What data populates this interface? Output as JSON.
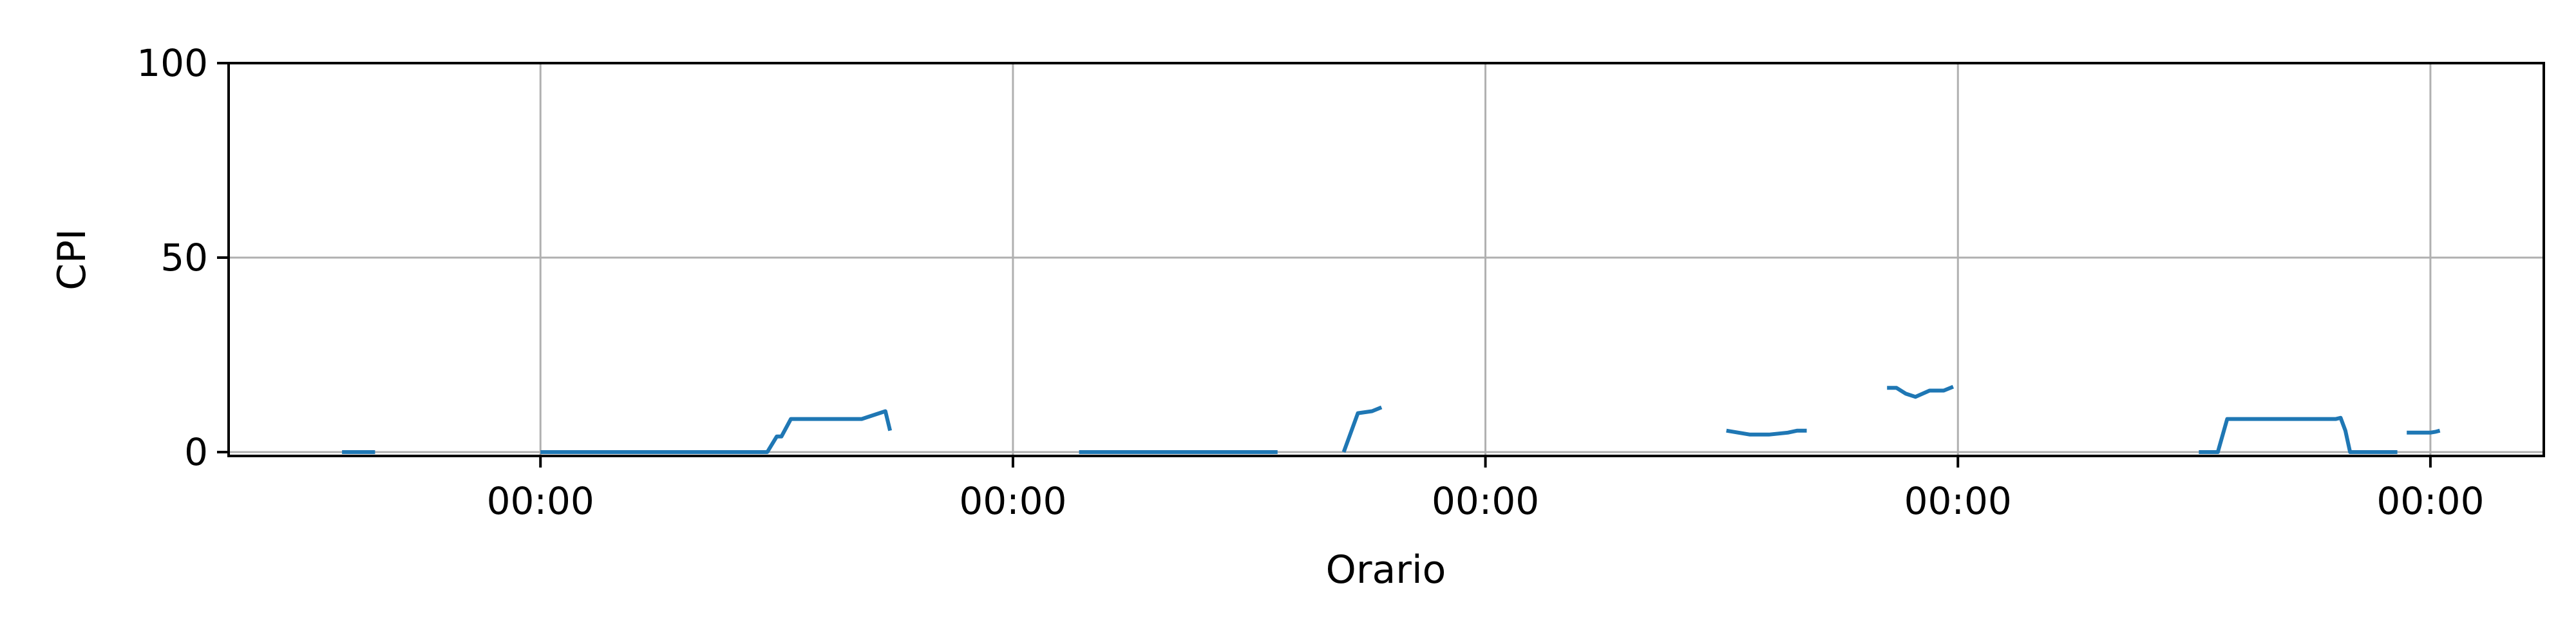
{
  "chart_data": {
    "type": "line",
    "title": "",
    "xlabel": "Orario",
    "ylabel": "CPI",
    "xlim": [
      -0.66,
      4.24
    ],
    "ylim": [
      -1,
      100
    ],
    "x_ticks": [
      {
        "value": 0,
        "label": "00:00"
      },
      {
        "value": 1,
        "label": "00:00"
      },
      {
        "value": 2,
        "label": "00:00"
      },
      {
        "value": 3,
        "label": "00:00"
      },
      {
        "value": 4,
        "label": "00:00"
      }
    ],
    "y_ticks": [
      {
        "value": 0,
        "label": "0"
      },
      {
        "value": 50,
        "label": "50"
      },
      {
        "value": 100,
        "label": "100"
      }
    ],
    "grid": true,
    "legend": "none",
    "line_color": "#1f77b4",
    "series": [
      {
        "segments": [
          [
            [
              -0.42,
              0
            ],
            [
              -0.35,
              0
            ]
          ],
          [
            [
              0.0,
              0
            ],
            [
              0.48,
              0
            ],
            [
              0.5,
              4
            ],
            [
              0.51,
              4
            ],
            [
              0.53,
              8.5
            ],
            [
              0.68,
              8.5
            ],
            [
              0.73,
              10.5
            ],
            [
              0.74,
              5.5
            ]
          ],
          [
            [
              1.14,
              0
            ],
            [
              1.56,
              0
            ]
          ],
          [
            [
              1.7,
              0
            ],
            [
              1.73,
              10
            ],
            [
              1.76,
              10.5
            ],
            [
              1.78,
              11.5
            ]
          ],
          [
            [
              2.51,
              5.5
            ],
            [
              2.56,
              4.5
            ],
            [
              2.6,
              4.5
            ],
            [
              2.64,
              5
            ],
            [
              2.66,
              5.5
            ],
            [
              2.68,
              5.5
            ]
          ],
          [
            [
              2.85,
              16.5
            ],
            [
              2.87,
              16.5
            ],
            [
              2.89,
              15
            ],
            [
              2.91,
              14.2
            ],
            [
              2.94,
              15.8
            ],
            [
              2.97,
              15.8
            ],
            [
              2.99,
              16.8
            ]
          ],
          [
            [
              3.51,
              0
            ],
            [
              3.55,
              0
            ],
            [
              3.57,
              8.5
            ],
            [
              3.8,
              8.5
            ],
            [
              3.81,
              8.8
            ],
            [
              3.82,
              5.5
            ],
            [
              3.83,
              0
            ],
            [
              3.93,
              0
            ]
          ],
          [
            [
              3.95,
              5
            ],
            [
              4.0,
              5
            ],
            [
              4.01,
              5.2
            ],
            [
              4.02,
              5.5
            ]
          ]
        ]
      }
    ]
  }
}
